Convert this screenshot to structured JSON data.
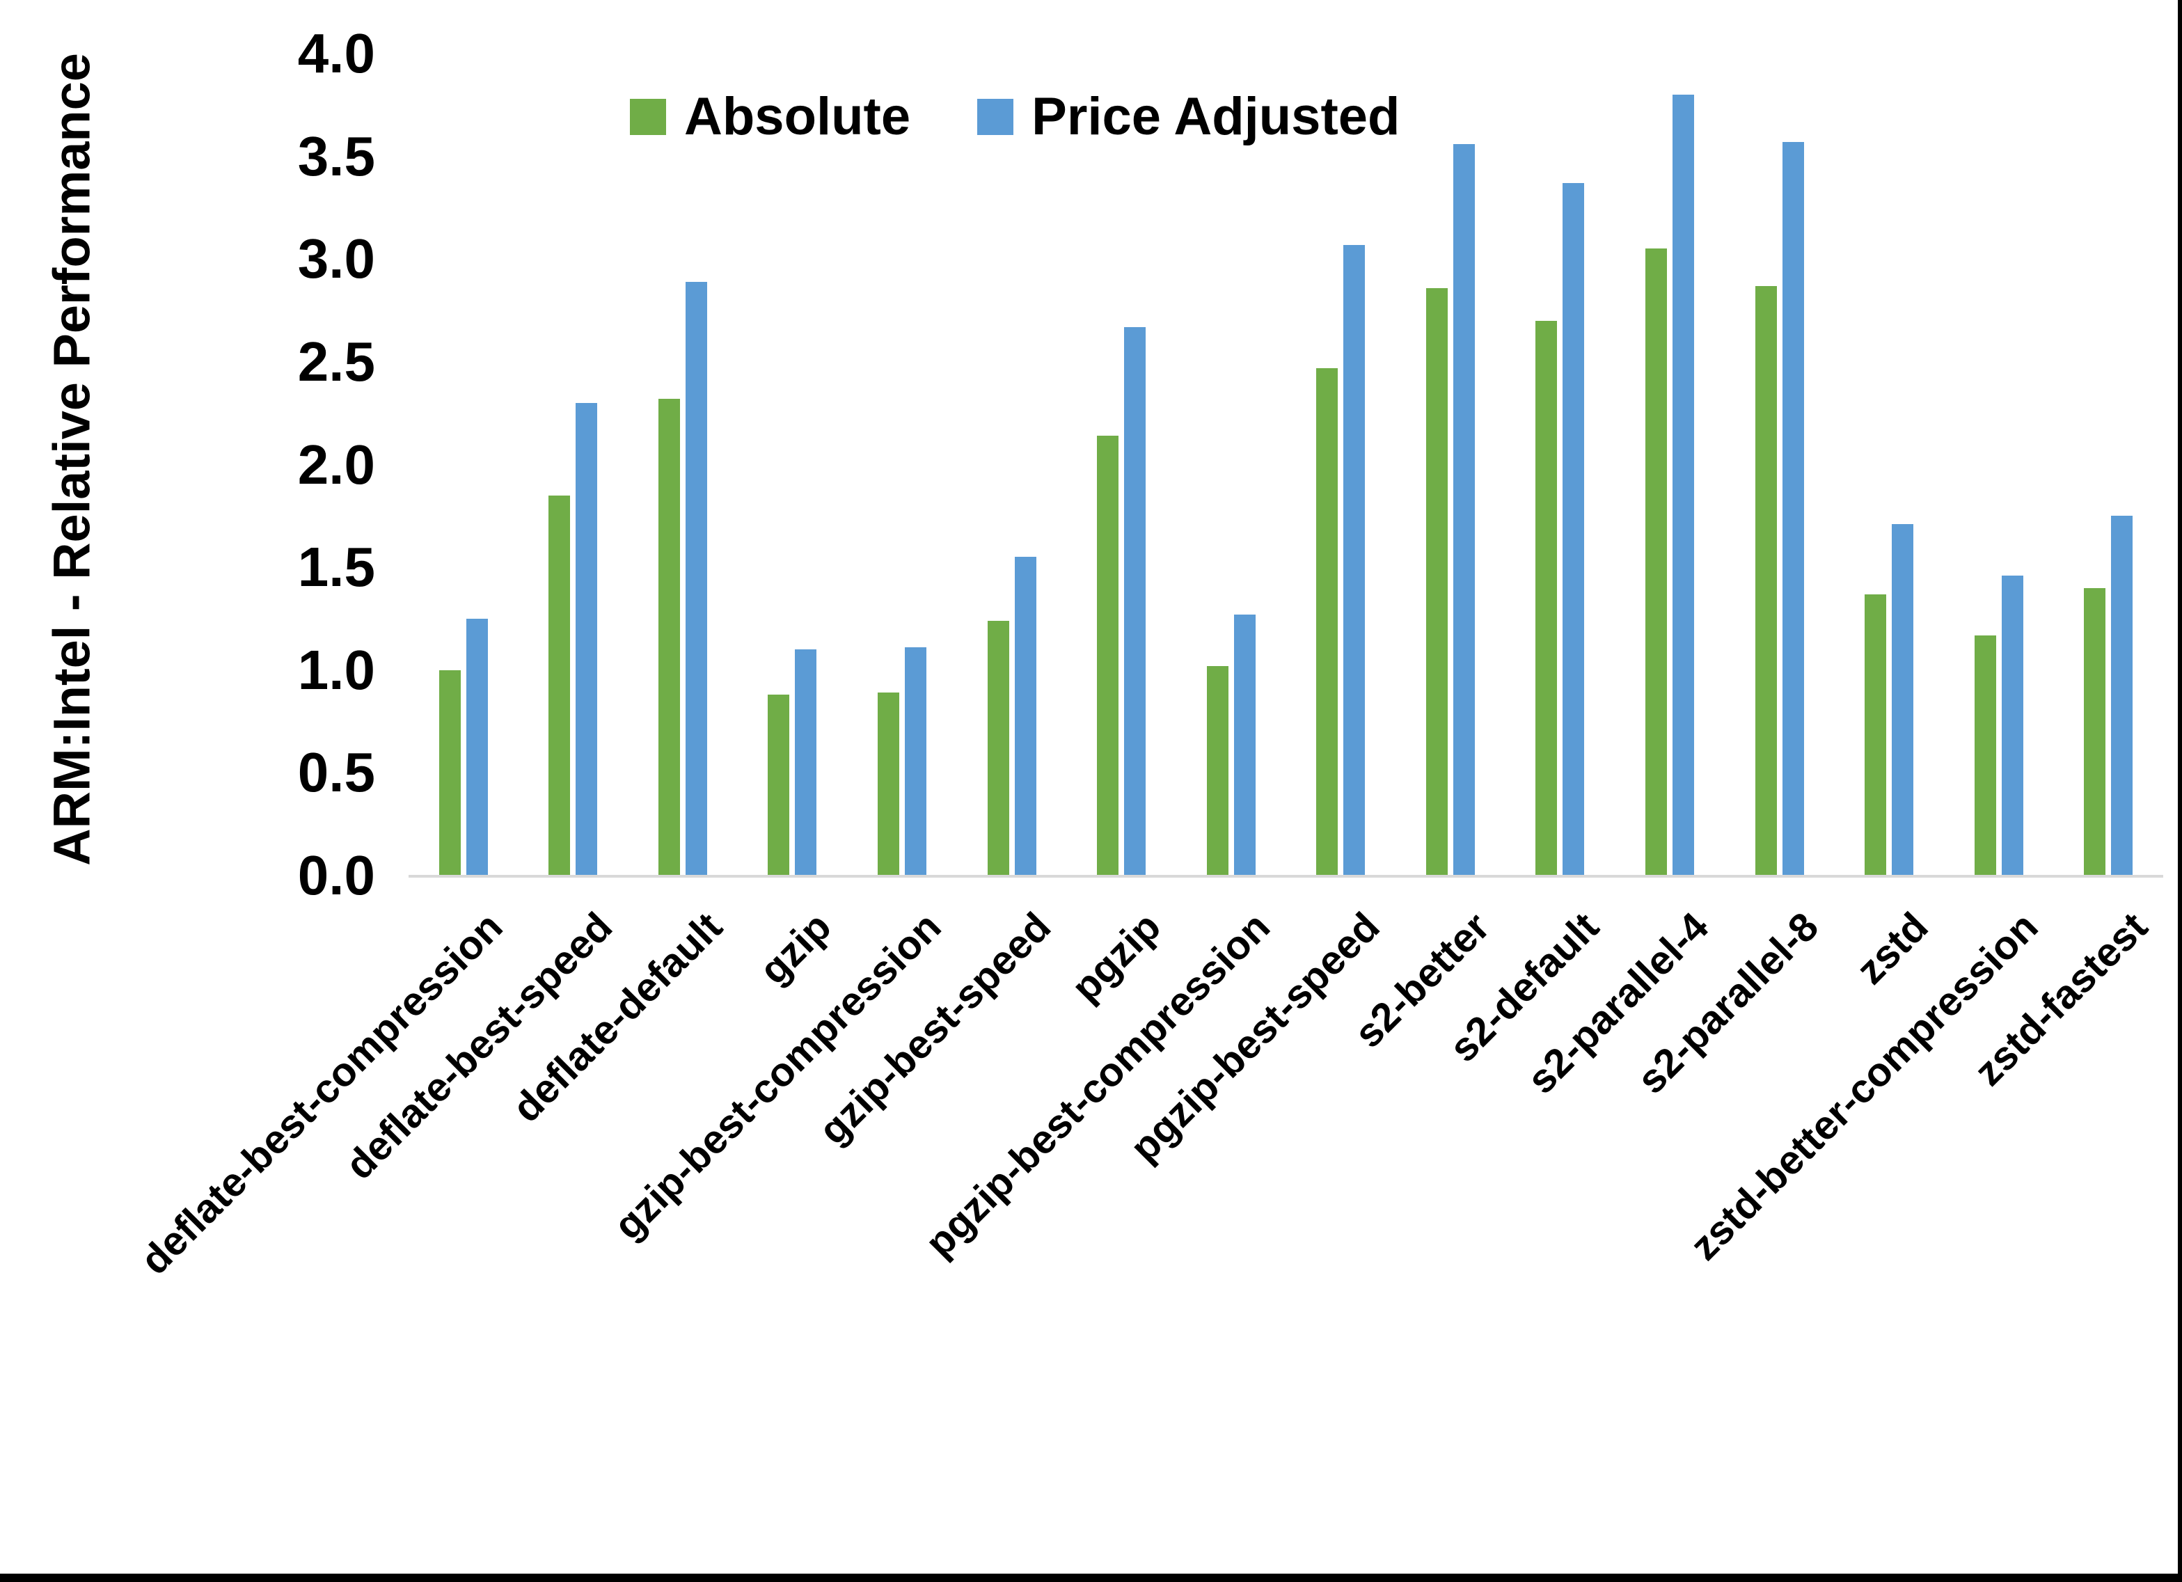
{
  "chart_data": {
    "type": "bar",
    "title": "",
    "xlabel": "",
    "ylabel": "ARM:Intel - Relative Performance",
    "ylim": [
      0.0,
      4.0
    ],
    "ytick_step": 0.5,
    "ytick_labels": [
      "4.0",
      "3.5",
      "3.0",
      "2.5",
      "2.0",
      "1.5",
      "1.0",
      "0.5",
      "0.0"
    ],
    "grid": false,
    "legend_position": "top-center",
    "categories": [
      "deflate-best-compression",
      "deflate-best-speed",
      "deflate-default",
      "gzip",
      "gzip-best-compression",
      "gzip-best-speed",
      "pgzip",
      "pgzip-best-compression",
      "pgzip-best-speed",
      "s2-better",
      "s2-default",
      "s2-parallel-4",
      "s2-parallel-8",
      "zstd",
      "zstd-better-compression",
      "zstd-fastest"
    ],
    "series": [
      {
        "name": "Absolute",
        "color": "#70AD47",
        "values": [
          1.0,
          1.85,
          2.32,
          0.88,
          0.89,
          1.24,
          2.14,
          1.02,
          2.47,
          2.86,
          2.7,
          3.05,
          2.87,
          1.37,
          1.17,
          1.4
        ]
      },
      {
        "name": "Price Adjusted",
        "color": "#5B9BD5",
        "values": [
          1.25,
          2.3,
          2.89,
          1.1,
          1.11,
          1.55,
          2.67,
          1.27,
          3.07,
          3.56,
          3.37,
          3.8,
          3.57,
          1.71,
          1.46,
          1.75
        ]
      }
    ]
  },
  "style_colors": {
    "axis_line": "#d9d9d9",
    "text": "#000000",
    "background": "#ffffff",
    "frame_border": "#000000"
  }
}
